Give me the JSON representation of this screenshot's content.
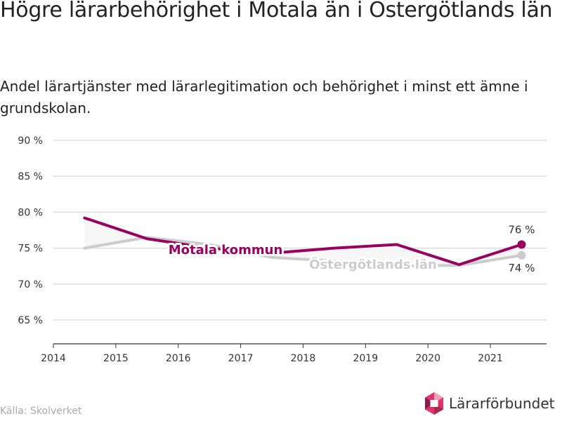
{
  "title": "Högre lärarbehörighet i Motala än i Östergötlands län",
  "subtitle": "Andel lärartjänster med lärarlegitimation och behörighet i minst ett ämne i grundskolan.",
  "source": "Källa: Skolverket",
  "logo_text": "Lärarförbundet",
  "colors": {
    "motala": "#9b0060",
    "lan": "#cccccc",
    "grid": "#dddddd",
    "axis": "#333333",
    "fill": "#f6f6f6"
  },
  "chart_data": {
    "type": "line",
    "title": "Högre lärarbehörighet i Motala än i Östergötlands län",
    "subtitle": "Andel lärartjänster med lärarlegitimation och behörighet i minst ett ämne i grundskolan.",
    "x_tick_labels": [
      "2014",
      "2015",
      "2016",
      "2017",
      "2018",
      "2019",
      "2020",
      "2021"
    ],
    "y_tick_labels": [
      "90 %",
      "85 %",
      "80 %",
      "75 %",
      "70 %",
      "65 %"
    ],
    "y_ticks": [
      90,
      85,
      80,
      75,
      70,
      65
    ],
    "x_ticks": [
      2014,
      2015,
      2016,
      2017,
      2018,
      2019,
      2020,
      2021
    ],
    "xlim": [
      2014,
      2021.9
    ],
    "ylim": [
      62,
      91
    ],
    "grid": true,
    "series": [
      {
        "name": "Motala kommun",
        "x": [
          2014.5,
          2015.5,
          2016.5,
          2017.5,
          2018.5,
          2019.5,
          2020.5,
          2021.5
        ],
        "y": [
          79.2,
          76.3,
          75.0,
          74.3,
          75.0,
          75.5,
          72.7,
          75.5
        ],
        "end_label": "76 %"
      },
      {
        "name": "Östergötlands län",
        "x": [
          2014.5,
          2015.5,
          2016.5,
          2017.5,
          2018.5,
          2019.5,
          2020.5,
          2021.5
        ],
        "y": [
          75.0,
          76.5,
          75.5,
          73.7,
          73.2,
          72.5,
          72.6,
          74.0
        ],
        "end_label": "74 %"
      }
    ]
  }
}
